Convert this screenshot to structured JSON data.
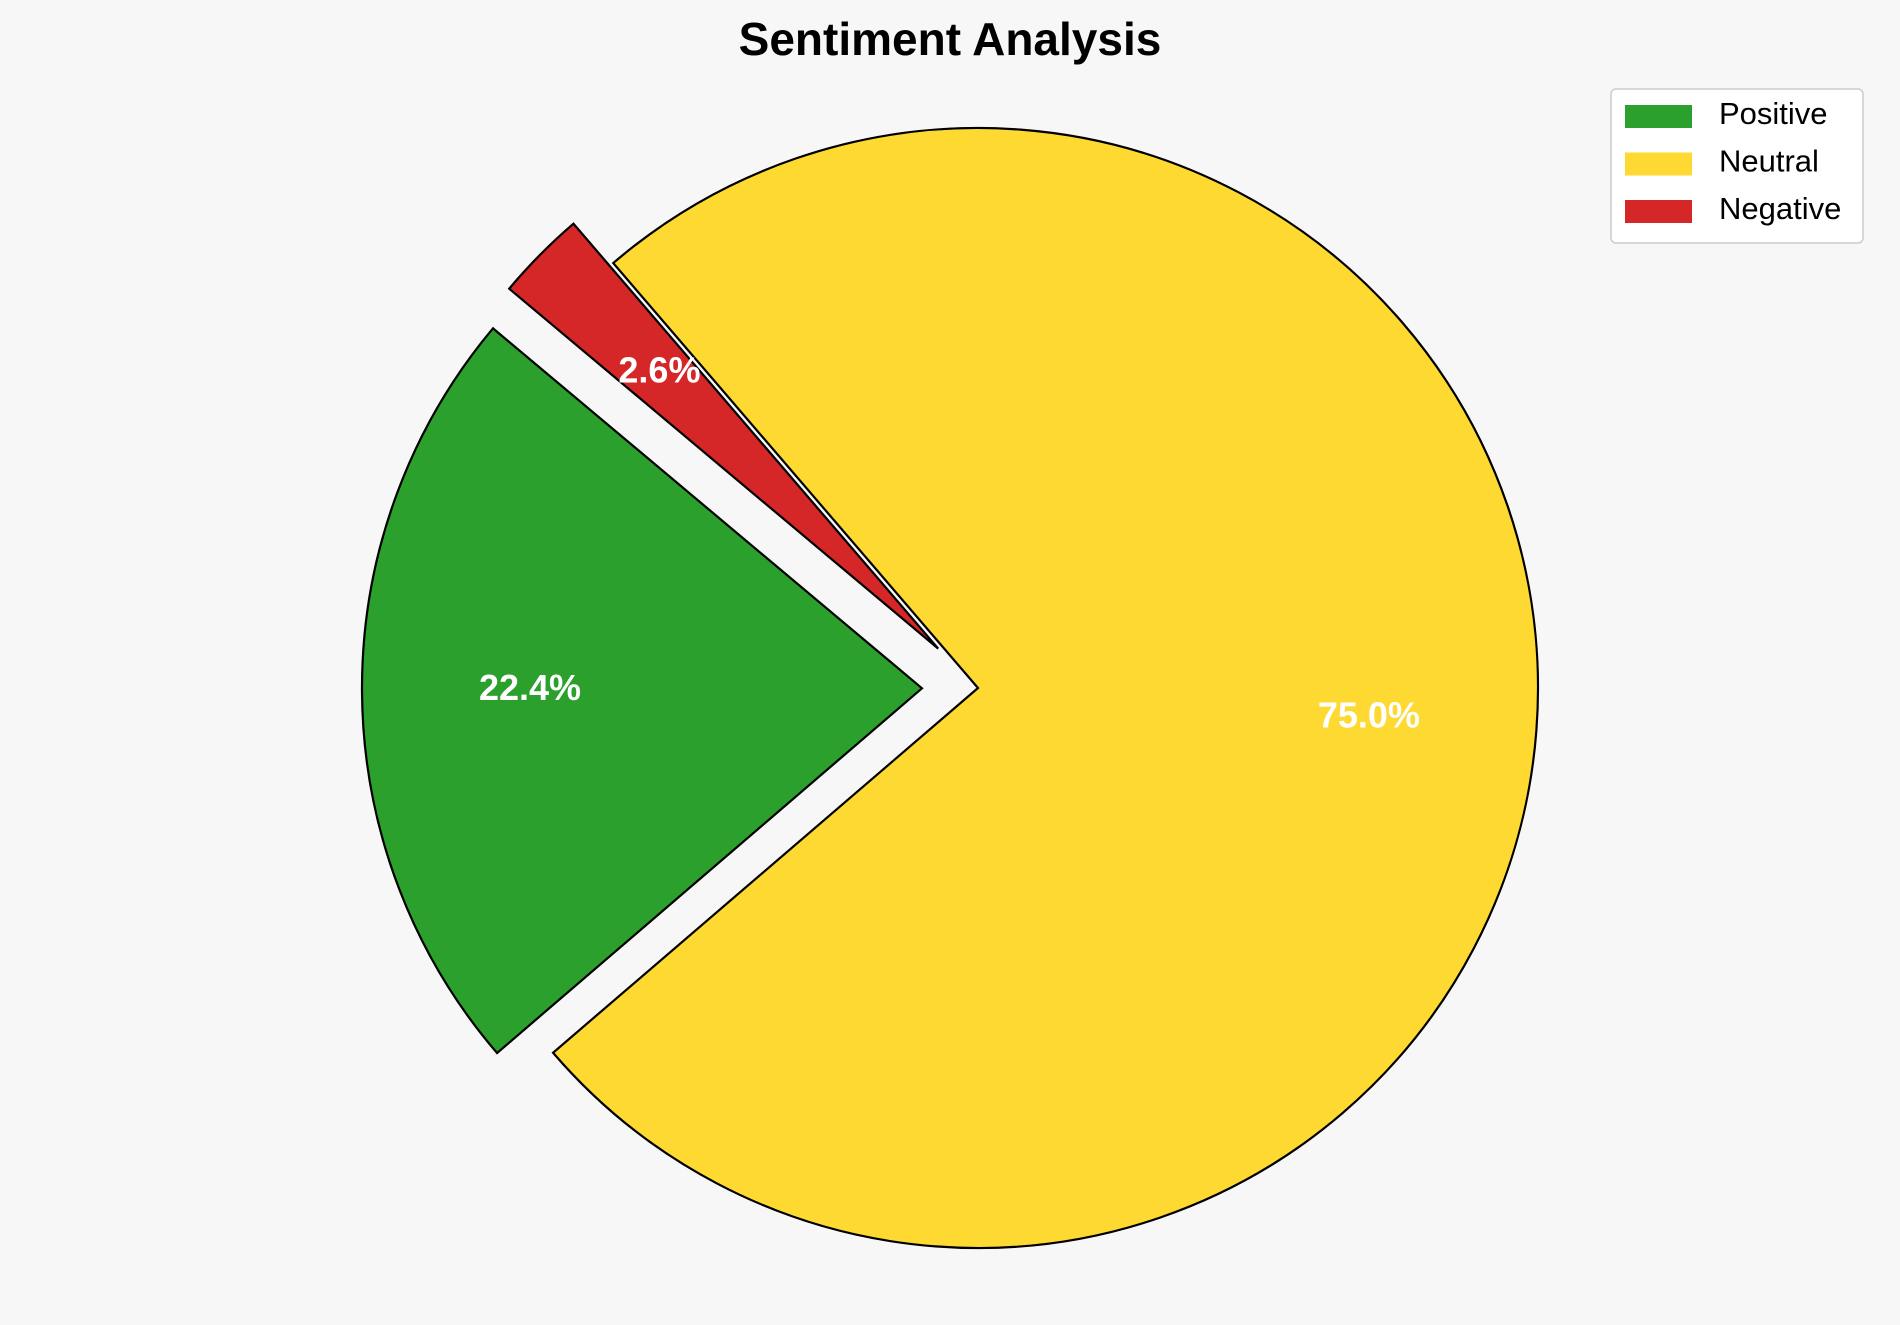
{
  "chart_data": {
    "type": "pie",
    "title": "Sentiment Analysis",
    "categories": [
      "Positive",
      "Neutral",
      "Negative"
    ],
    "values": [
      22.4,
      75.0,
      2.6
    ],
    "labels": [
      "22.4%",
      "75.0%",
      "2.6%"
    ],
    "colors": [
      "#2ca02c",
      "#fdd931",
      "#d62728"
    ],
    "exploded": [
      true,
      false,
      true
    ],
    "legend": {
      "entries": [
        "Positive",
        "Neutral",
        "Negative"
      ],
      "placement": "top-right"
    }
  }
}
